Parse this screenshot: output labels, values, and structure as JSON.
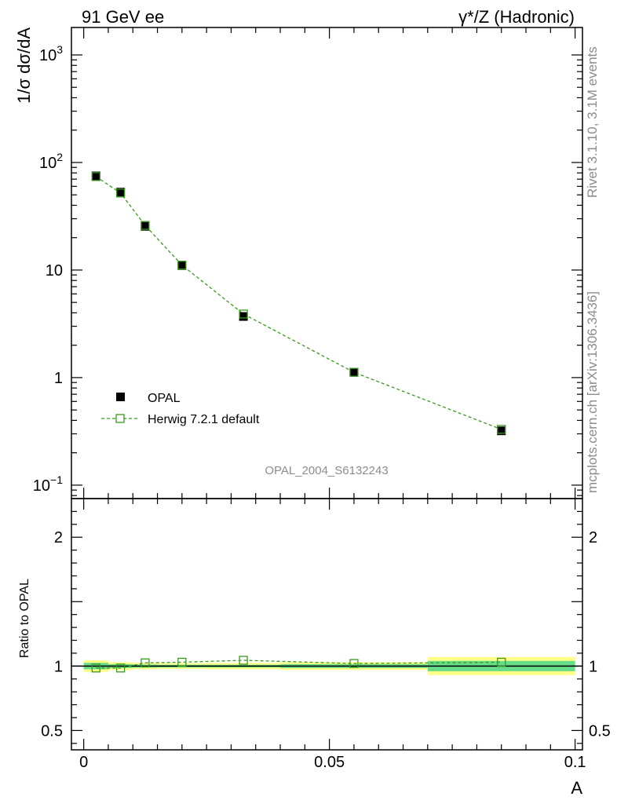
{
  "header": {
    "left": "91 GeV ee",
    "right": "γ*/Z (Hadronic)"
  },
  "side": {
    "rivet": "Rivet 3.1.10,  3.1M events",
    "mcplots": "mcplots.cern.ch [arXiv:1306.3436]"
  },
  "watermark": "OPAL_2004_S6132243",
  "legend": {
    "data": "OPAL",
    "mc": "Herwig 7.2.1 default"
  },
  "colors": {
    "mc": "#3a9a1e",
    "band_inner": "#66dd88",
    "band_outer": "#ffff88",
    "data": "#000000"
  },
  "chart_data": [
    {
      "type": "line",
      "panel": "main",
      "ylabel": "1/σ dσ/dA",
      "yscale": "log",
      "ylim": [
        0.075,
        1800
      ],
      "xlim": [
        -0.0025,
        0.1015
      ],
      "yticks": [
        {
          "value": 0.1,
          "base": "10",
          "exp": "−1"
        },
        {
          "value": 1,
          "base": "1",
          "exp": ""
        },
        {
          "value": 10,
          "base": "10",
          "exp": ""
        },
        {
          "value": 100,
          "base": "10",
          "exp": "2"
        },
        {
          "value": 1000,
          "base": "10",
          "exp": "3"
        }
      ],
      "x": [
        0.0025,
        0.0075,
        0.0125,
        0.02,
        0.0325,
        0.055,
        0.085
      ],
      "series": [
        {
          "name": "OPAL",
          "values": [
            75,
            53,
            25.5,
            11.0,
            3.7,
            1.12,
            0.32
          ]
        },
        {
          "name": "Herwig 7.2.1 default",
          "values": [
            74,
            52,
            26.0,
            11.1,
            3.9,
            1.12,
            0.33
          ]
        }
      ]
    },
    {
      "type": "line",
      "panel": "ratio",
      "ylabel": "Ratio to OPAL",
      "xlabel": "A",
      "ylim": [
        0.35,
        2.3
      ],
      "xlim": [
        -0.0025,
        0.1015
      ],
      "xticks": [
        {
          "value": 0,
          "label": "0"
        },
        {
          "value": 0.05,
          "label": "0.05"
        },
        {
          "value": 0.1,
          "label": "0.1"
        }
      ],
      "yticks": [
        {
          "value": 0.5,
          "label": "0.5"
        },
        {
          "value": 1,
          "label": "1"
        },
        {
          "value": 2,
          "label": "2"
        }
      ],
      "bands": [
        {
          "x0": 0.0,
          "x1": 0.005,
          "inner": [
            0.975,
            1.025
          ],
          "outer": [
            0.955,
            1.045
          ]
        },
        {
          "x0": 0.005,
          "x1": 0.01,
          "inner": [
            0.985,
            1.015
          ],
          "outer": [
            0.97,
            1.03
          ]
        },
        {
          "x0": 0.01,
          "x1": 0.015,
          "inner": [
            0.988,
            1.012
          ],
          "outer": [
            0.975,
            1.025
          ]
        },
        {
          "x0": 0.015,
          "x1": 0.025,
          "inner": [
            0.99,
            1.01
          ],
          "outer": [
            0.978,
            1.022
          ]
        },
        {
          "x0": 0.025,
          "x1": 0.04,
          "inner": [
            0.99,
            1.01
          ],
          "outer": [
            0.975,
            1.025
          ]
        },
        {
          "x0": 0.04,
          "x1": 0.07,
          "inner": [
            0.985,
            1.015
          ],
          "outer": [
            0.97,
            1.03
          ]
        },
        {
          "x0": 0.07,
          "x1": 0.1,
          "inner": [
            0.96,
            1.04
          ],
          "outer": [
            0.93,
            1.07
          ]
        }
      ],
      "x": [
        0.0025,
        0.0075,
        0.0125,
        0.02,
        0.0325,
        0.055,
        0.085
      ],
      "series": [
        {
          "name": "Herwig 7.2.1 default",
          "values": [
            0.985,
            0.985,
            1.025,
            1.03,
            1.045,
            1.02,
            1.03
          ]
        }
      ]
    }
  ]
}
